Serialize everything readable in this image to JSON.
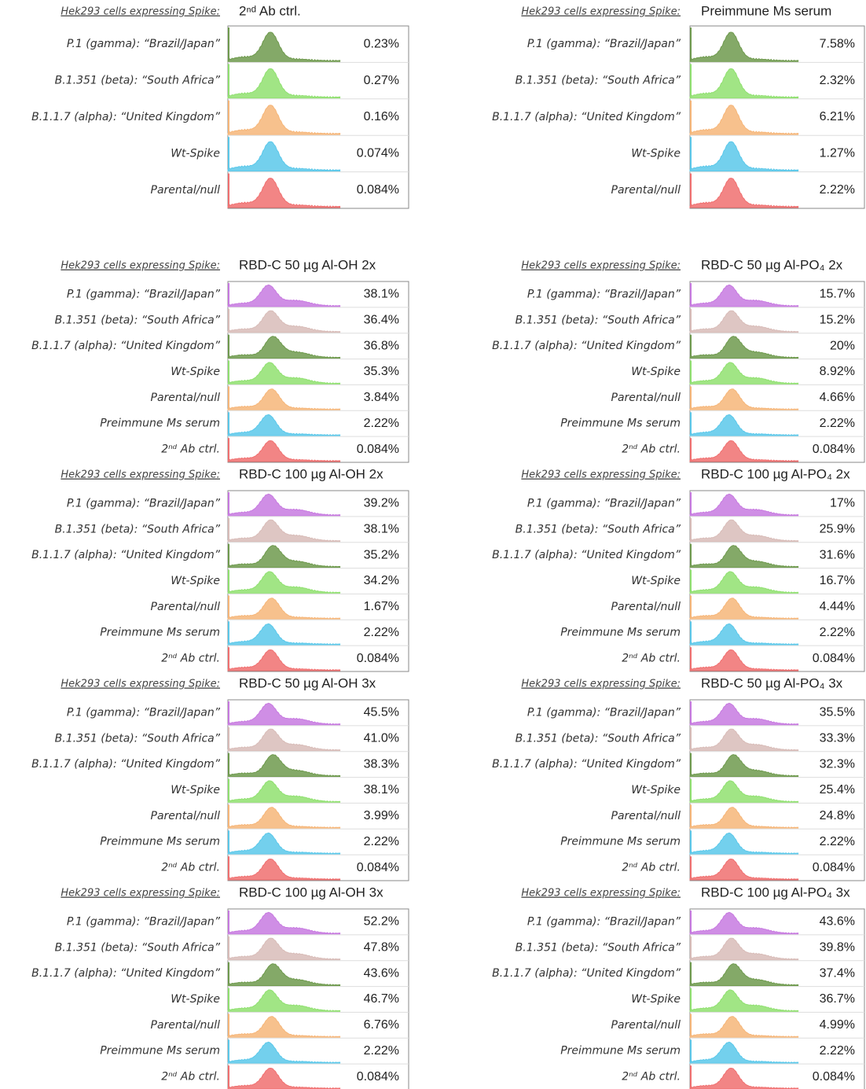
{
  "panels": [
    {
      "header": "Hek293 cells expressing Spike:",
      "title": "2ⁿᵈ Ab ctrl.",
      "rows": [
        {
          "label": "P.1 (gamma): “Brazil/Japan”",
          "value": "0.23%",
          "color": "#6f9a4e"
        },
        {
          "label": "B.1.351 (beta): “South Africa”",
          "value": "0.27%",
          "color": "#90e070"
        },
        {
          "label": "B.1.1.7 (alpha): “United Kingdom”",
          "value": "0.16%",
          "color": "#f6b679"
        },
        {
          "label": "Wt-Spike",
          "value": "0.074%",
          "color": "#5bc8ea"
        },
        {
          "label": "Parental/null",
          "value": "0.084%",
          "color": "#f07070"
        }
      ]
    },
    {
      "header": "Hek293 cells expressing Spike:",
      "title": "Preimmune Ms serum",
      "rows": [
        {
          "label": "P.1 (gamma): “Brazil/Japan”",
          "value": "7.58%",
          "color": "#6f9a4e"
        },
        {
          "label": "B.1.351 (beta): “South Africa”",
          "value": "2.32%",
          "color": "#90e070"
        },
        {
          "label": "B.1.1.7 (alpha): “United Kingdom”",
          "value": "6.21%",
          "color": "#f6b679"
        },
        {
          "label": "Wt-Spike",
          "value": "1.27%",
          "color": "#5bc8ea"
        },
        {
          "label": "Parental/null",
          "value": "2.22%",
          "color": "#f07070"
        }
      ]
    },
    {
      "header": "Hek293 cells expressing Spike:",
      "title": "RBD-C 50 µg Al-OH 2x",
      "rows": [
        {
          "label": "P.1 (gamma): “Brazil/Japan”",
          "value": "38.1%",
          "color": "#c77ae0"
        },
        {
          "label": "B.1.351 (beta): “South Africa”",
          "value": "36.4%",
          "color": "#d8bcb8"
        },
        {
          "label": "B.1.1.7 (alpha): “United Kingdom”",
          "value": "36.8%",
          "color": "#6f9a4e"
        },
        {
          "label": "Wt-Spike",
          "value": "35.3%",
          "color": "#90e070"
        },
        {
          "label": "Parental/null",
          "value": "3.84%",
          "color": "#f6b679"
        },
        {
          "label": "Preimmune Ms serum",
          "value": "2.22%",
          "color": "#5bc8ea"
        },
        {
          "label": "2ⁿᵈ Ab ctrl.",
          "value": "0.084%",
          "color": "#f07070"
        }
      ]
    },
    {
      "header": "Hek293 cells expressing Spike:",
      "title": "RBD-C 50 µg Al-PO₄ 2x",
      "rows": [
        {
          "label": "P.1 (gamma): “Brazil/Japan”",
          "value": "15.7%",
          "color": "#c77ae0"
        },
        {
          "label": "B.1.351 (beta): “South Africa”",
          "value": "15.2%",
          "color": "#d8bcb8"
        },
        {
          "label": "B.1.1.7 (alpha): “United Kingdom”",
          "value": "20%",
          "color": "#6f9a4e"
        },
        {
          "label": "Wt-Spike",
          "value": "8.92%",
          "color": "#90e070"
        },
        {
          "label": "Parental/null",
          "value": "4.66%",
          "color": "#f6b679"
        },
        {
          "label": "Preimmune Ms serum",
          "value": "2.22%",
          "color": "#5bc8ea"
        },
        {
          "label": "2ⁿᵈ Ab ctrl.",
          "value": "0.084%",
          "color": "#f07070"
        }
      ]
    },
    {
      "header": "Hek293 cells expressing Spike:",
      "title": "RBD-C 100 µg Al-OH 2x",
      "rows": [
        {
          "label": "P.1 (gamma): “Brazil/Japan”",
          "value": "39.2%",
          "color": "#c77ae0"
        },
        {
          "label": "B.1.351 (beta): “South Africa”",
          "value": "38.1%",
          "color": "#d8bcb8"
        },
        {
          "label": "B.1.1.7 (alpha): “United Kingdom”",
          "value": "35.2%",
          "color": "#6f9a4e"
        },
        {
          "label": "Wt-Spike",
          "value": "34.2%",
          "color": "#90e070"
        },
        {
          "label": "Parental/null",
          "value": "1.67%",
          "color": "#f6b679"
        },
        {
          "label": "Preimmune Ms serum",
          "value": "2.22%",
          "color": "#5bc8ea"
        },
        {
          "label": "2ⁿᵈ Ab ctrl.",
          "value": "0.084%",
          "color": "#f07070"
        }
      ]
    },
    {
      "header": "Hek293 cells expressing Spike:",
      "title": "RBD-C 100 µg Al-PO₄ 2x",
      "rows": [
        {
          "label": "P.1 (gamma): “Brazil/Japan”",
          "value": "17%",
          "color": "#c77ae0"
        },
        {
          "label": "B.1.351 (beta): “South Africa”",
          "value": "25.9%",
          "color": "#d8bcb8"
        },
        {
          "label": "B.1.1.7 (alpha): “United Kingdom”",
          "value": "31.6%",
          "color": "#6f9a4e"
        },
        {
          "label": "Wt-Spike",
          "value": "16.7%",
          "color": "#90e070"
        },
        {
          "label": "Parental/null",
          "value": "4.44%",
          "color": "#f6b679"
        },
        {
          "label": "Preimmune Ms serum",
          "value": "2.22%",
          "color": "#5bc8ea"
        },
        {
          "label": "2ⁿᵈ Ab ctrl.",
          "value": "0.084%",
          "color": "#f07070"
        }
      ]
    },
    {
      "header": "Hek293 cells expressing Spike:",
      "title": "RBD-C 50 µg Al-OH 3x",
      "rows": [
        {
          "label": "P.1 (gamma): “Brazil/Japan”",
          "value": "45.5%",
          "color": "#c77ae0"
        },
        {
          "label": "B.1.351 (beta): “South Africa”",
          "value": "41.0%",
          "color": "#d8bcb8"
        },
        {
          "label": "B.1.1.7 (alpha): “United Kingdom”",
          "value": "38.3%",
          "color": "#6f9a4e"
        },
        {
          "label": "Wt-Spike",
          "value": "38.1%",
          "color": "#90e070"
        },
        {
          "label": "Parental/null",
          "value": "3.99%",
          "color": "#f6b679"
        },
        {
          "label": "Preimmune Ms serum",
          "value": "2.22%",
          "color": "#5bc8ea"
        },
        {
          "label": "2ⁿᵈ Ab ctrl.",
          "value": "0.084%",
          "color": "#f07070"
        }
      ]
    },
    {
      "header": "Hek293 cells expressing Spike:",
      "title": "RBD-C 50 µg Al-PO₄ 3x",
      "rows": [
        {
          "label": "P.1 (gamma): “Brazil/Japan”",
          "value": "35.5%",
          "color": "#c77ae0"
        },
        {
          "label": "B.1.351 (beta): “South Africa”",
          "value": "33.3%",
          "color": "#d8bcb8"
        },
        {
          "label": "B.1.1.7 (alpha): “United Kingdom”",
          "value": "32.3%",
          "color": "#6f9a4e"
        },
        {
          "label": "Wt-Spike",
          "value": "25.4%",
          "color": "#90e070"
        },
        {
          "label": "Parental/null",
          "value": "24.8%",
          "color": "#f6b679"
        },
        {
          "label": "Preimmune Ms serum",
          "value": "2.22%",
          "color": "#5bc8ea"
        },
        {
          "label": "2ⁿᵈ Ab ctrl.",
          "value": "0.084%",
          "color": "#f07070"
        }
      ]
    },
    {
      "header": "Hek293 cells expressing Spike:",
      "title": "RBD-C 100 µg Al-OH 3x",
      "rows": [
        {
          "label": "P.1 (gamma): “Brazil/Japan”",
          "value": "52.2%",
          "color": "#c77ae0"
        },
        {
          "label": "B.1.351 (beta): “South Africa”",
          "value": "47.8%",
          "color": "#d8bcb8"
        },
        {
          "label": "B.1.1.7 (alpha): “United Kingdom”",
          "value": "43.6%",
          "color": "#6f9a4e"
        },
        {
          "label": "Wt-Spike",
          "value": "46.7%",
          "color": "#90e070"
        },
        {
          "label": "Parental/null",
          "value": "6.76%",
          "color": "#f6b679"
        },
        {
          "label": "Preimmune Ms serum",
          "value": "2.22%",
          "color": "#5bc8ea"
        },
        {
          "label": "2ⁿᵈ Ab ctrl.",
          "value": "0.084%",
          "color": "#f07070"
        }
      ]
    },
    {
      "header": "Hek293 cells expressing Spike:",
      "title": "RBD-C 100 µg Al-PO₄ 3x",
      "rows": [
        {
          "label": "P.1 (gamma): “Brazil/Japan”",
          "value": "43.6%",
          "color": "#c77ae0"
        },
        {
          "label": "B.1.351 (beta): “South Africa”",
          "value": "39.8%",
          "color": "#d8bcb8"
        },
        {
          "label": "B.1.1.7 (alpha): “United Kingdom”",
          "value": "37.4%",
          "color": "#6f9a4e"
        },
        {
          "label": "Wt-Spike",
          "value": "36.7%",
          "color": "#90e070"
        },
        {
          "label": "Parental/null",
          "value": "4.99%",
          "color": "#f6b679"
        },
        {
          "label": "Preimmune Ms serum",
          "value": "2.22%",
          "color": "#5bc8ea"
        },
        {
          "label": "2ⁿᵈ Ab ctrl.",
          "value": "0.084%",
          "color": "#f07070"
        }
      ]
    }
  ]
}
